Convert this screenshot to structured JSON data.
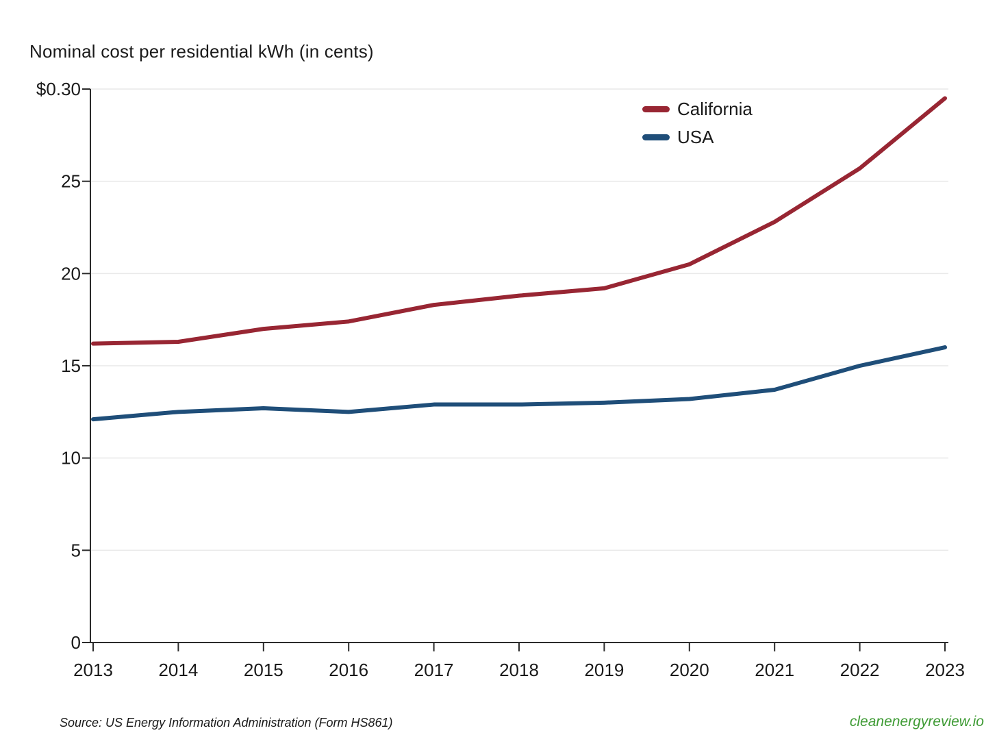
{
  "page": {
    "title": "Nominal cost per residential kWh (in cents)",
    "source_note": "Source: US Energy Information Administration (Form HS861)",
    "footer_site": "cleanenergyreview.io"
  },
  "colors": {
    "california": "#982633",
    "usa": "#1F4E79",
    "gridline": "#E9E9E9",
    "axis": "#2b2b2b",
    "text": "#1a1a1a",
    "footer_green": "#3F9B35"
  },
  "chart_data": {
    "type": "line",
    "title": "Nominal cost per residential kWh (in cents)",
    "x": [
      2013,
      2014,
      2015,
      2016,
      2017,
      2018,
      2019,
      2020,
      2021,
      2022,
      2023
    ],
    "series": [
      {
        "name": "California",
        "color": "#982633",
        "values": [
          16.2,
          16.3,
          17.0,
          17.4,
          18.3,
          18.8,
          19.2,
          20.5,
          22.8,
          25.7,
          29.5
        ]
      },
      {
        "name": "USA",
        "color": "#1F4E79",
        "values": [
          12.1,
          12.5,
          12.7,
          12.5,
          12.9,
          12.9,
          13.0,
          13.2,
          13.7,
          15.0,
          16.0
        ]
      }
    ],
    "xlabel": "",
    "ylabel": "",
    "ylim": [
      0,
      30
    ],
    "y_ticks": [
      {
        "value": 0,
        "label": "0"
      },
      {
        "value": 5,
        "label": "5"
      },
      {
        "value": 10,
        "label": "10"
      },
      {
        "value": 15,
        "label": "15"
      },
      {
        "value": 20,
        "label": "20"
      },
      {
        "value": 25,
        "label": "25"
      },
      {
        "value": 30,
        "label": "$0.30"
      }
    ],
    "grid": "horizontal",
    "legend_position": "top-right"
  }
}
